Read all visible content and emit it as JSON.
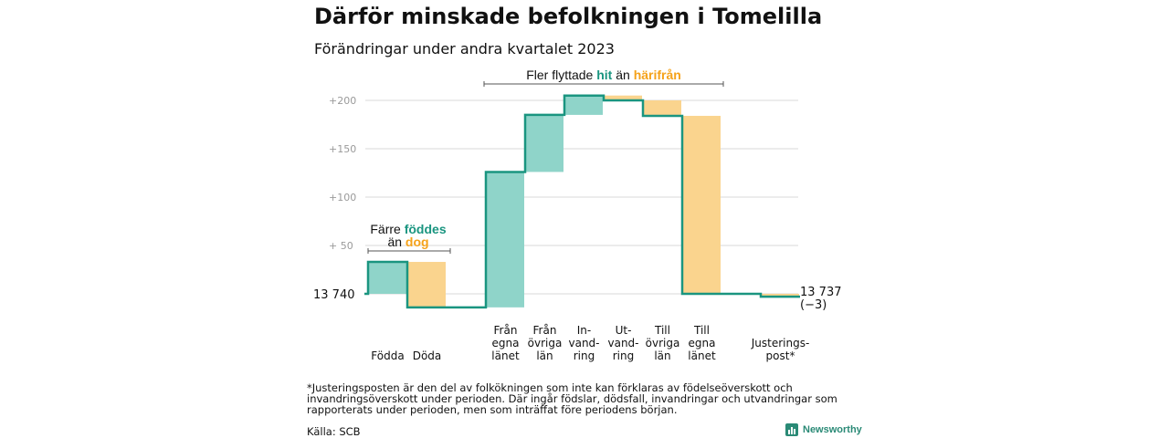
{
  "title": "Därför minskade befolkningen i Tomelilla",
  "subtitle": "Förändringar under andra kvartalet 2023",
  "colors": {
    "positive": "#8fd4c9",
    "negative": "#fad48e",
    "line": "#1a9580",
    "accent_pos": "#1a9580",
    "accent_neg": "#f5a21a",
    "grid": "#d9d9d9",
    "tick": "#9a9a9a"
  },
  "chart_data": {
    "type": "waterfall",
    "start_label": "13  740",
    "start_value": 13740,
    "end_label": "13 737",
    "end_change": "(−3)",
    "y_ticks": [
      {
        "value": 50,
        "label": "+  50"
      },
      {
        "value": 100,
        "label": "+100"
      },
      {
        "value": 150,
        "label": "+150"
      },
      {
        "value": 200,
        "label": "+200"
      }
    ],
    "ylim": [
      -20,
      210
    ],
    "steps": [
      {
        "label_lines": [
          "Födda"
        ],
        "change": 33
      },
      {
        "label_lines": [
          "Döda"
        ],
        "change": -47
      },
      {
        "label_lines": [
          ""
        ],
        "change": 0
      },
      {
        "label_lines": [
          "Från",
          "egna",
          "länet"
        ],
        "change": 140
      },
      {
        "label_lines": [
          "Från",
          "övriga",
          "län"
        ],
        "change": 59
      },
      {
        "label_lines": [
          "In-",
          "vand-",
          "ring"
        ],
        "change": 20
      },
      {
        "label_lines": [
          "Ut-",
          "vand-",
          "ring"
        ],
        "change": -5
      },
      {
        "label_lines": [
          "Till",
          "övriga",
          "län"
        ],
        "change": -16
      },
      {
        "label_lines": [
          "Till",
          "egna",
          "länet"
        ],
        "change": -184
      },
      {
        "label_lines": [
          ""
        ],
        "change": 0
      },
      {
        "label_lines": [
          "Justerings-",
          "post*"
        ],
        "change": -3
      }
    ],
    "annotations": {
      "births": {
        "line1_pre": "Färre ",
        "line1_hl": "föddes",
        "line2_pre": "än ",
        "line2_hl": "dog"
      },
      "migration": {
        "pre": "Fler flyttade ",
        "hl1": "hit",
        "mid": "  än ",
        "hl2": "härifrån"
      }
    }
  },
  "footnote": "*Justeringsposten är den del av folkökningen som inte kan förklaras av födelseöverskott och invandringsöverskott under perioden. Där ingår födslar, dödsfall, invandringar och utvandringar som rapporterats under perioden, men som inträffat före periodens början.",
  "source": "Källa: SCB",
  "brand": {
    "name": "Newsworthy",
    "icon": "bar-chart-logo-icon"
  }
}
